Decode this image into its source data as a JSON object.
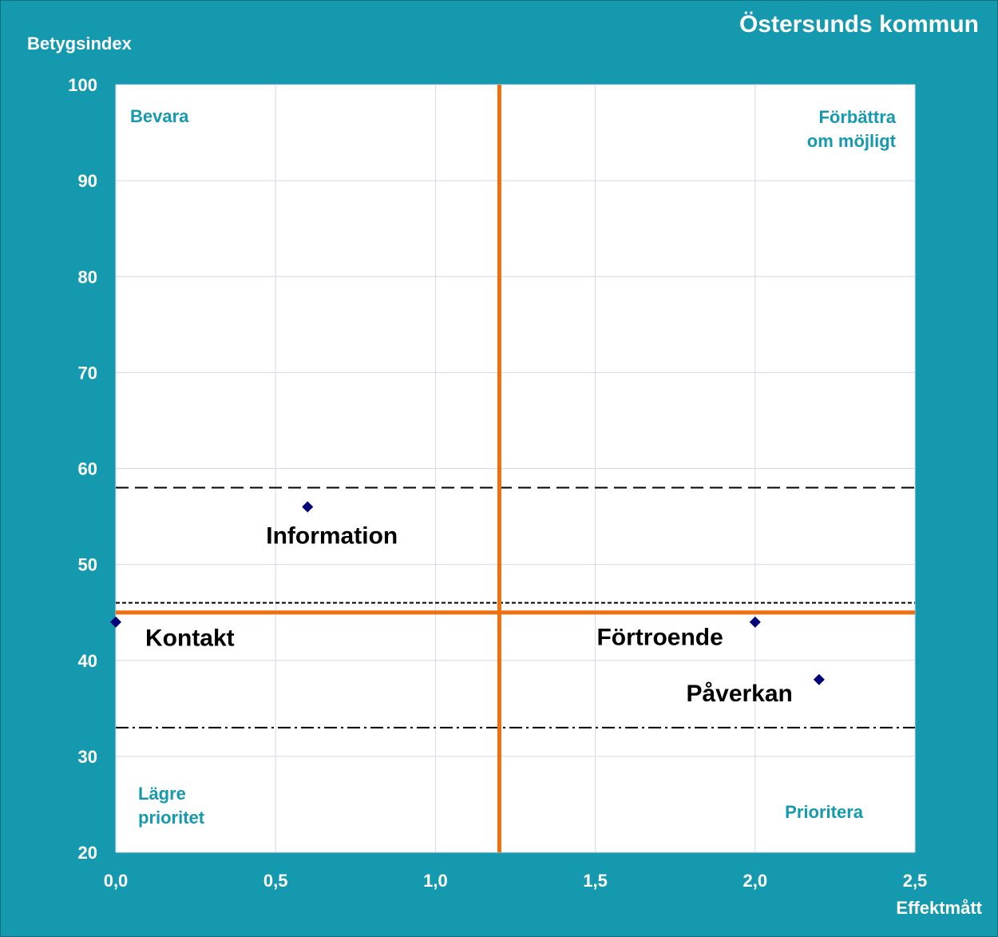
{
  "chart_data": {
    "type": "scatter",
    "title": "Östersunds kommun",
    "xlabel": "Effektmått",
    "ylabel": "Betygsindex",
    "xlim": [
      0,
      2.5
    ],
    "ylim": [
      20,
      100
    ],
    "x_ticks": [
      "0,0",
      "0,5",
      "1,0",
      "1,5",
      "2,0",
      "2,5"
    ],
    "x_tick_values": [
      0,
      0.5,
      1.0,
      1.5,
      2.0,
      2.5
    ],
    "y_ticks": [
      "20",
      "30",
      "40",
      "50",
      "60",
      "70",
      "80",
      "90",
      "100"
    ],
    "y_tick_values": [
      20,
      30,
      40,
      50,
      60,
      70,
      80,
      90,
      100
    ],
    "grid": true,
    "points": [
      {
        "label": "Information",
        "x": 0.6,
        "y": 56
      },
      {
        "label": "Kontakt",
        "x": 0.0,
        "y": 44
      },
      {
        "label": "Förtroende",
        "x": 2.0,
        "y": 44
      },
      {
        "label": "Påverkan",
        "x": 2.2,
        "y": 38
      }
    ],
    "reference_lines": {
      "vertical_x": 1.2,
      "horizontal_y": 45,
      "dashed_y": 58,
      "dotted_y": 46,
      "dashdot_y": 33
    },
    "quadrant_labels": {
      "top_left": [
        "Bevara"
      ],
      "top_right": [
        "Förbättra",
        "om möjligt"
      ],
      "bottom_left": [
        "Lägre",
        "prioritet"
      ],
      "bottom_right": [
        "Prioritera"
      ]
    }
  },
  "colors": {
    "background": "#1599AF",
    "plot_bg": "#ffffff",
    "grid": "#d6d6ee",
    "reference": "#F07010",
    "marker": "#00007A",
    "quadrant_text": "#1599AF"
  }
}
